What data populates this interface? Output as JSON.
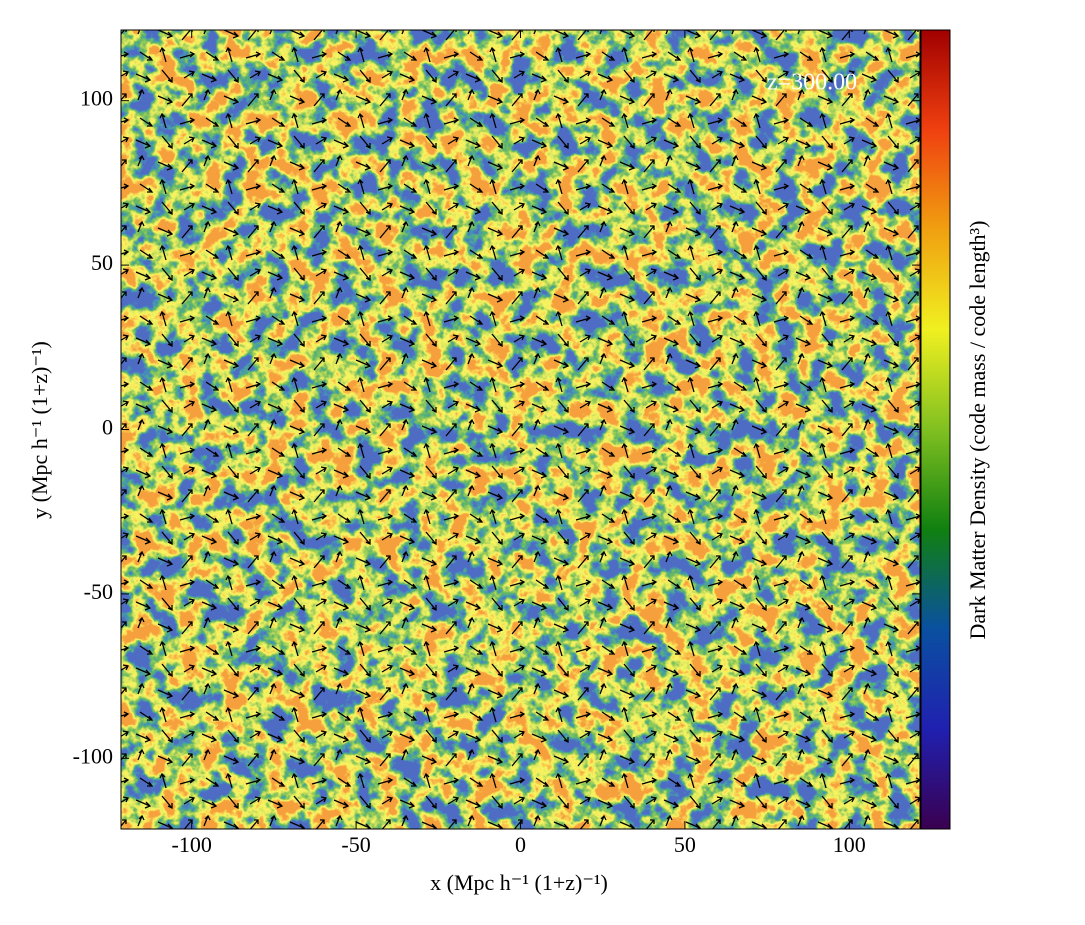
{
  "chart_data": {
    "type": "image",
    "annotation": "z=300.00",
    "xlabel": "x  (Mpc h⁻¹  (1+z)⁻¹)",
    "ylabel": "y  (Mpc h⁻¹  (1+z)⁻¹)",
    "colorbar_label": "Dark Matter Density  (code mass / code length³)",
    "xlim": [
      -121.5,
      121.5
    ],
    "xticks": [
      -100,
      -50,
      0,
      50,
      100
    ],
    "ylim": [
      -121.5,
      121.5
    ],
    "yticks": [
      -100,
      -50,
      0,
      50,
      100
    ],
    "colormap": [
      "#3a0050",
      "#2020b0",
      "#0a50a0",
      "#108010",
      "#80c020",
      "#f0f020",
      "#f0a010",
      "#f04010",
      "#a00000"
    ]
  }
}
